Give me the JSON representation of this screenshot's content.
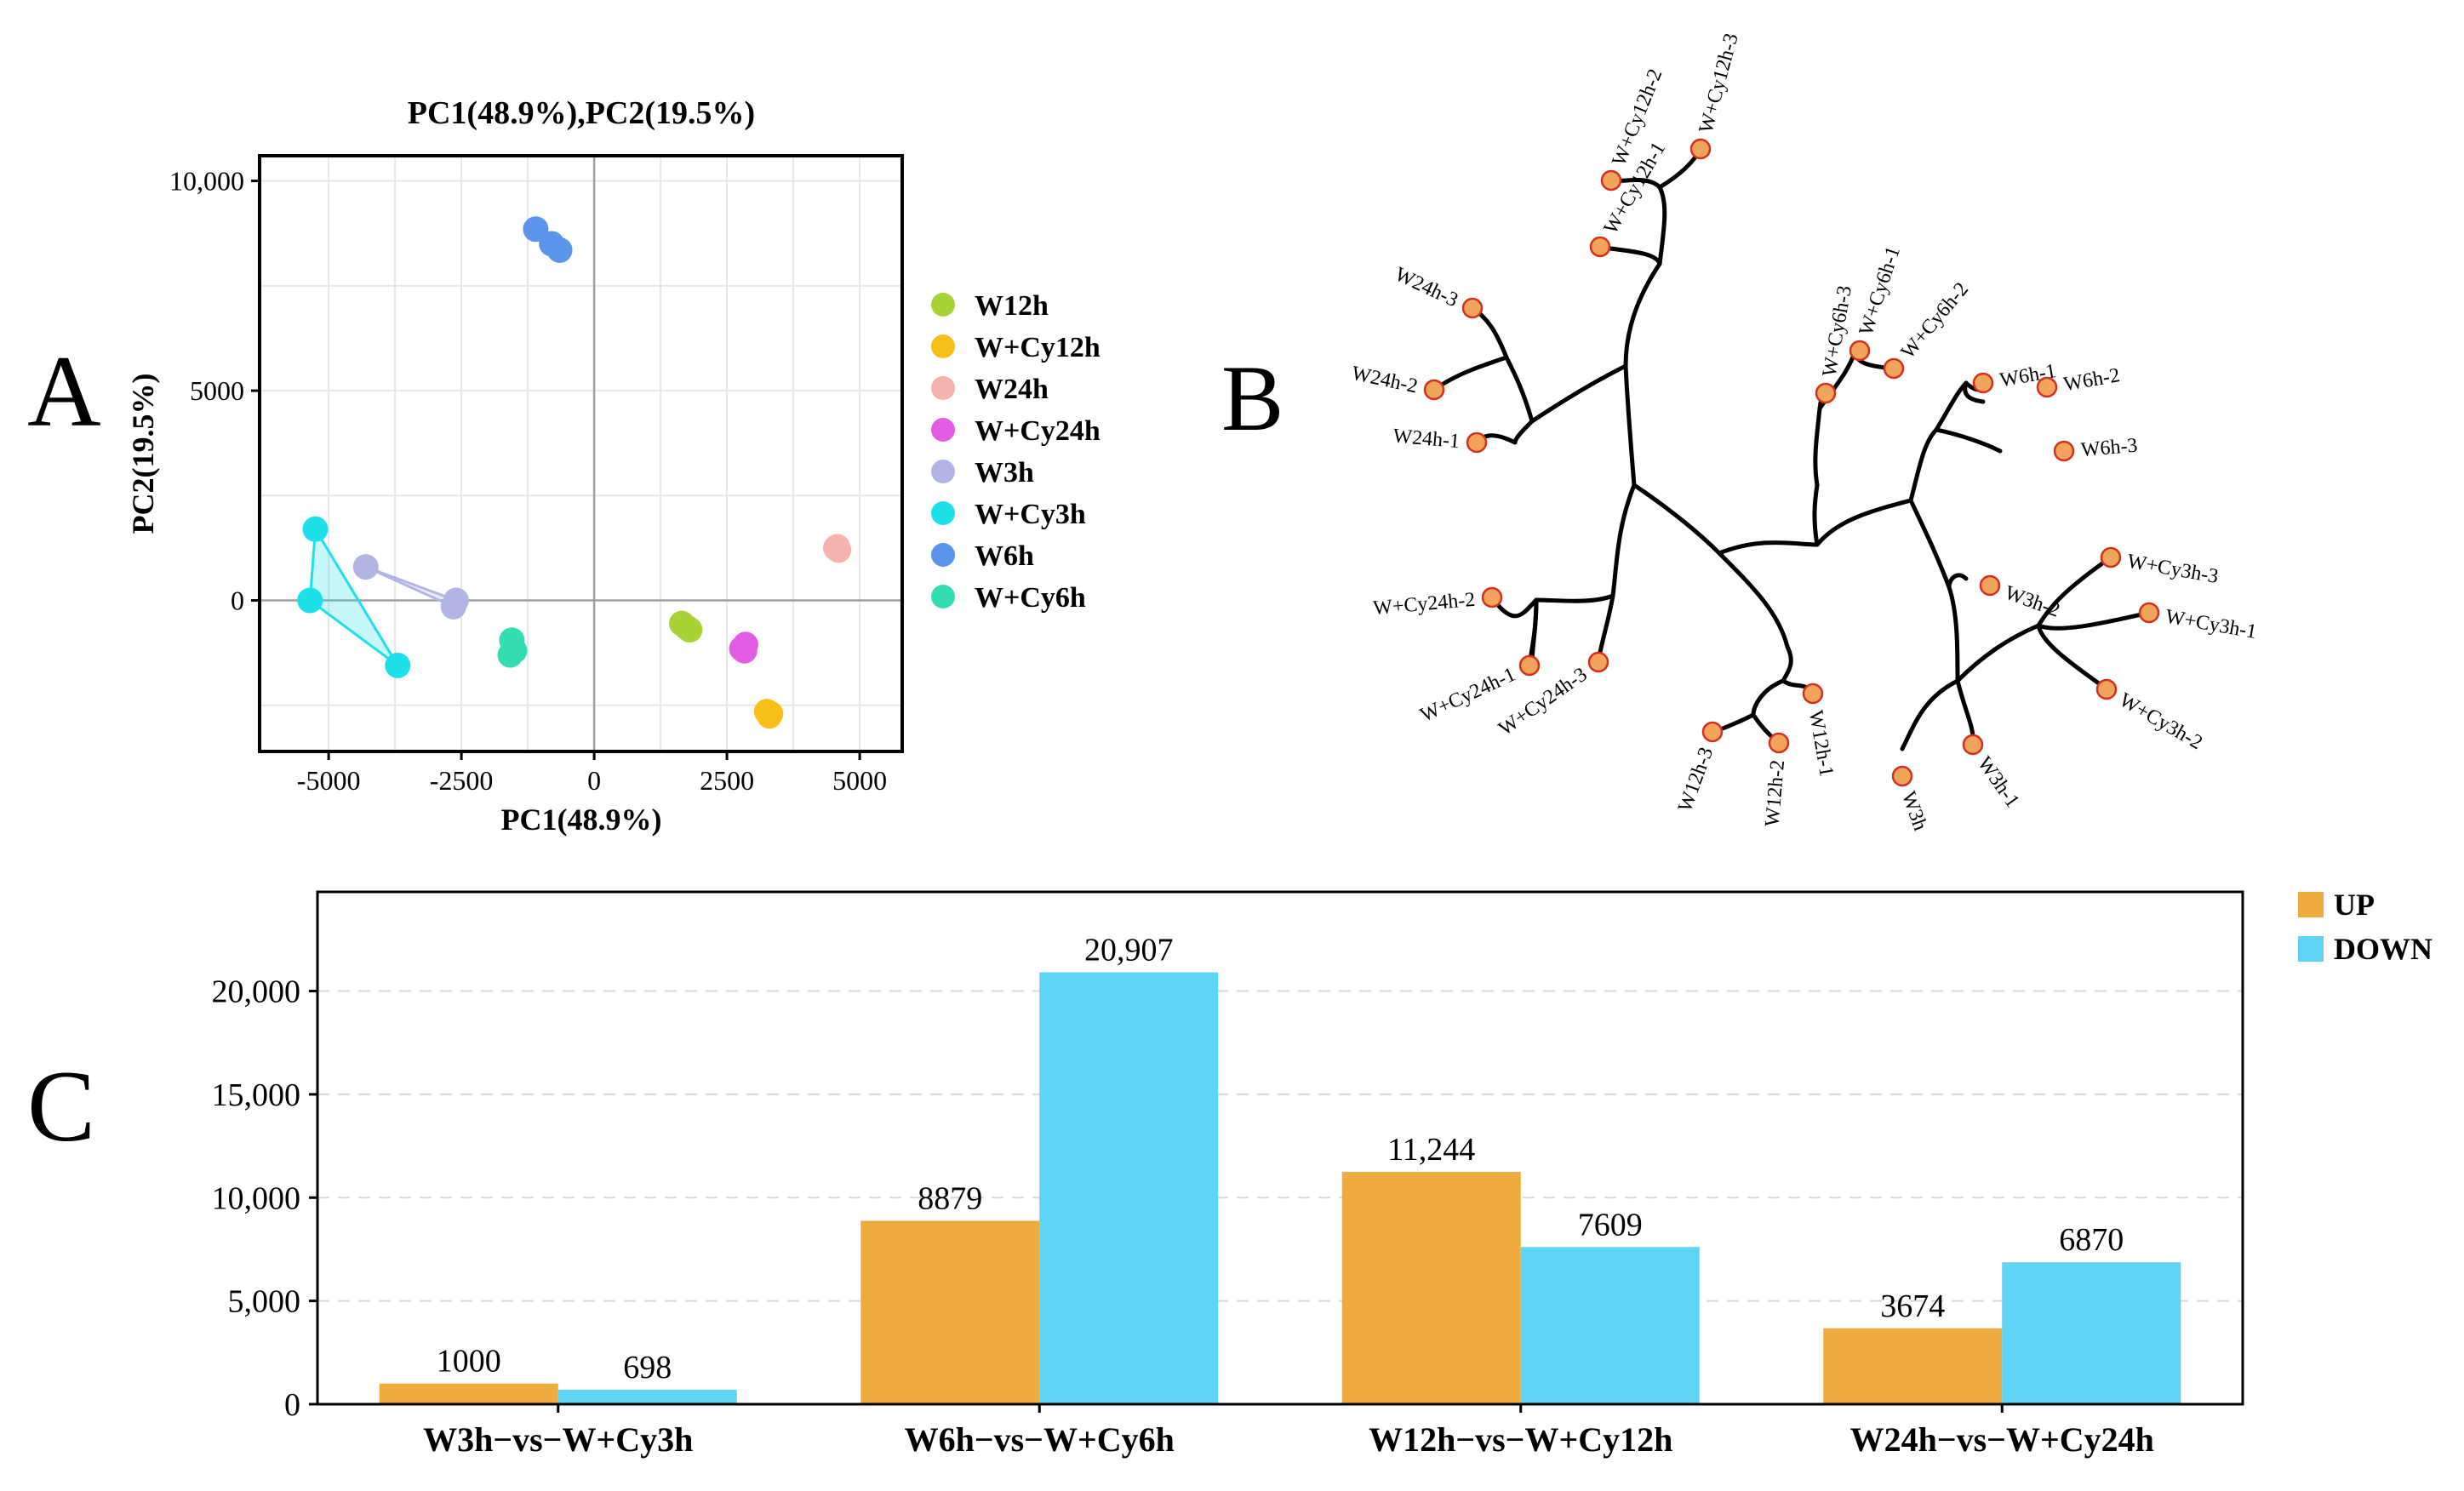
{
  "panels": {
    "a": "A",
    "b": "B",
    "c": "C"
  },
  "chart_data": [
    {
      "type": "scatter",
      "title": "PC1(48.9%),PC2(19.5%)",
      "xlabel": "PC1(48.9%)",
      "ylabel": "PC2(19.5%)",
      "xlim": [
        -6300,
        5800
      ],
      "ylim": [
        -3600,
        10600
      ],
      "xticks": [
        -5000,
        -2500,
        0,
        2500,
        5000
      ],
      "xtick_labels": [
        "-5000",
        "-2500",
        "0",
        "2500",
        "5000"
      ],
      "yticks": [
        0,
        5000,
        10000
      ],
      "ytick_labels": [
        "0",
        "5000",
        "10,000"
      ],
      "grid": true,
      "legend_position": "right",
      "series": [
        {
          "name": "W12h",
          "color": "#a8d235",
          "points": [
            [
              1650,
              -550
            ],
            [
              1750,
              -650
            ],
            [
              1800,
              -700
            ]
          ]
        },
        {
          "name": "W+Cy12h",
          "color": "#f6c019",
          "points": [
            [
              3250,
              -2650
            ],
            [
              3300,
              -2750
            ],
            [
              3320,
              -2700
            ]
          ]
        },
        {
          "name": "W24h",
          "color": "#f6b2ad",
          "points": [
            [
              4550,
              1250
            ],
            [
              4600,
              1200
            ],
            [
              4580,
              1280
            ]
          ]
        },
        {
          "name": "W+Cy24h",
          "color": "#e25de1",
          "points": [
            [
              2780,
              -1150
            ],
            [
              2850,
              -1050
            ],
            [
              2830,
              -1200
            ]
          ]
        },
        {
          "name": "W3h",
          "color": "#b2b4e3",
          "points": [
            [
              -4300,
              800
            ],
            [
              -2600,
              0
            ],
            [
              -2650,
              -150
            ]
          ]
        },
        {
          "name": "W+Cy3h",
          "color": "#1ee0e8",
          "points": [
            [
              -5250,
              1700
            ],
            [
              -5350,
              0
            ],
            [
              -3700,
              -1550
            ]
          ]
        },
        {
          "name": "W6h",
          "color": "#5b94e9",
          "points": [
            [
              -1100,
              8850
            ],
            [
              -800,
              8500
            ],
            [
              -650,
              8350
            ]
          ]
        },
        {
          "name": "W+Cy6h",
          "color": "#34dcb2",
          "points": [
            [
              -1550,
              -950
            ],
            [
              -1580,
              -1300
            ],
            [
              -1500,
              -1200
            ]
          ]
        }
      ],
      "hulls": [
        {
          "series": "W+Cy3h",
          "color": "#1ee0e8"
        },
        {
          "series": "W3h",
          "color": "#b2b4e3"
        }
      ]
    },
    {
      "type": "other",
      "leaf_color": "#f2a55a",
      "leaf_stroke": "#d3301f",
      "leaves": [
        "W+Cy12h-3",
        "W+Cy12h-2",
        "W+Cy12h-1",
        "W24h-3",
        "W24h-2",
        "W24h-1",
        "W+Cy24h-2",
        "W+Cy24h-1",
        "W+Cy24h-3",
        "W12h-3",
        "W12h-2",
        "W12h-1",
        "W3h",
        "W3h-1",
        "W3h-2",
        "W+Cy3h-3",
        "W+Cy3h-1",
        "W+Cy3h-2",
        "W6h-1",
        "W6h-2",
        "W6h-3",
        "W+Cy6h-3",
        "W+Cy6h-1",
        "W+Cy6h-2"
      ]
    },
    {
      "type": "bar",
      "categories": [
        "W3h−vs−W+Cy3h",
        "W6h−vs−W+Cy6h",
        "W12h−vs−W+Cy12h",
        "W24h−vs−W+Cy24h"
      ],
      "series": [
        {
          "name": "UP",
          "color": "#eeac3e",
          "values": [
            1000,
            8879,
            11244,
            3674
          ],
          "labels": [
            "1000",
            "8879",
            "11,244",
            "3674"
          ]
        },
        {
          "name": "DOWN",
          "color": "#5fd4f4",
          "values": [
            698,
            20907,
            7609,
            6870
          ],
          "labels": [
            "698",
            "20,907",
            "7609",
            "6870"
          ]
        }
      ],
      "ylim": [
        0,
        24800
      ],
      "yticks": [
        0,
        5000,
        10000,
        15000,
        20000
      ],
      "ytick_labels": [
        "0",
        "5,000",
        "10,000",
        "15,000",
        "20,000"
      ],
      "grid": true,
      "legend_position": "top-right"
    }
  ]
}
